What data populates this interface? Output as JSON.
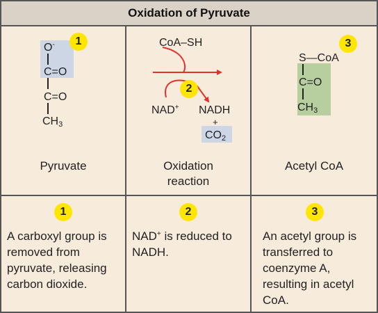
{
  "title": "Oxidation of Pyruvate",
  "badges": {
    "one": "1",
    "two": "2",
    "three": "3"
  },
  "pyruvate": {
    "charge_atom": "O",
    "charge": "-",
    "carbonyl_1": "C=O",
    "carbonyl_2": "C=O",
    "methyl": "CH",
    "methyl_sub": "3",
    "label": "Pyruvate"
  },
  "reaction": {
    "input": "CoA–SH",
    "nad": "NAD",
    "nad_sup": "+",
    "nadh": "NADH",
    "plus": "+",
    "co2": "CO",
    "co2_sub": "2",
    "label_line1": "Oxidation",
    "label_line2": "reaction"
  },
  "acetyl": {
    "s_coa": "S—CoA",
    "carbonyl": "C=O",
    "methyl": "CH",
    "methyl_sub": "3",
    "label": "Acetyl CoA"
  },
  "descriptions": {
    "one": "A carboxyl group is removed from pyruvate, releasing carbon dioxide.",
    "two_a": "NAD",
    "two_sup": "+",
    "two_b": " is reduced to NADH.",
    "three": "An acetyl group is transferred to coenzyme A, resulting in acetyl CoA."
  },
  "colors": {
    "panel": "#f7ebdc",
    "title_bar": "#dad2c6",
    "border": "#555555",
    "badge": "#ffe600",
    "arrow": "#e2312a",
    "blue_highlight": "#cdd6e4",
    "green_highlight": "#b7cf9e"
  }
}
